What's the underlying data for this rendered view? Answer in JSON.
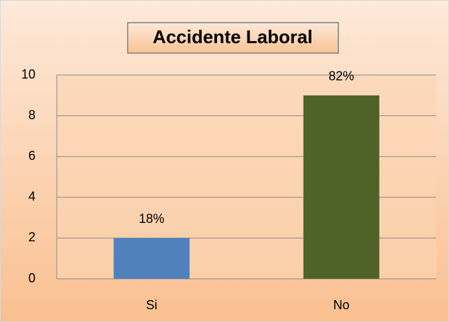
{
  "chart_data": {
    "type": "bar",
    "title": "Accidente Laboral",
    "categories": [
      "Si",
      "No"
    ],
    "values": [
      2,
      9
    ],
    "value_labels": [
      "18%",
      "82%"
    ],
    "colors": [
      "#4f81bd",
      "#4f6228"
    ],
    "ylim": [
      0,
      10
    ],
    "yticks": [
      0,
      2,
      4,
      6,
      8,
      10
    ],
    "grid": true
  }
}
